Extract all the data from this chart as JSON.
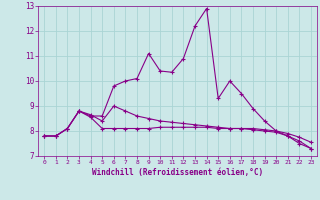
{
  "xlabel": "Windchill (Refroidissement éolien,°C)",
  "bg_color": "#cce8e8",
  "line_color": "#880088",
  "grid_color": "#aad4d4",
  "xlim": [
    -0.5,
    23.5
  ],
  "ylim": [
    7,
    13
  ],
  "xticks": [
    0,
    1,
    2,
    3,
    4,
    5,
    6,
    7,
    8,
    9,
    10,
    11,
    12,
    13,
    14,
    15,
    16,
    17,
    18,
    19,
    20,
    21,
    22,
    23
  ],
  "yticks": [
    7,
    8,
    9,
    10,
    11,
    12,
    13
  ],
  "line1_x": [
    0,
    1,
    2,
    3,
    4,
    5,
    6,
    7,
    8,
    9,
    10,
    11,
    12,
    13,
    14,
    15,
    16,
    17,
    18,
    19,
    20,
    21,
    22,
    23
  ],
  "line1_y": [
    7.8,
    7.8,
    8.1,
    8.8,
    8.6,
    8.6,
    9.8,
    10.0,
    10.1,
    11.1,
    10.4,
    10.35,
    10.9,
    12.2,
    12.9,
    9.3,
    10.0,
    9.5,
    8.9,
    8.4,
    8.0,
    7.8,
    7.5,
    7.3
  ],
  "line2_x": [
    0,
    1,
    2,
    3,
    4,
    5,
    6,
    7,
    8,
    9,
    10,
    11,
    12,
    13,
    14,
    15,
    16,
    17,
    18,
    19,
    20,
    21,
    22,
    23
  ],
  "line2_y": [
    7.8,
    7.8,
    8.1,
    8.8,
    8.55,
    8.1,
    8.1,
    8.1,
    8.1,
    8.1,
    8.15,
    8.15,
    8.15,
    8.15,
    8.15,
    8.1,
    8.1,
    8.1,
    8.1,
    8.05,
    8.0,
    7.9,
    7.75,
    7.55
  ],
  "line3_x": [
    0,
    1,
    2,
    3,
    4,
    5,
    6,
    7,
    8,
    9,
    10,
    11,
    12,
    13,
    14,
    15,
    16,
    17,
    18,
    19,
    20,
    21,
    22,
    23
  ],
  "line3_y": [
    7.8,
    7.8,
    8.1,
    8.8,
    8.65,
    8.4,
    9.0,
    8.8,
    8.6,
    8.5,
    8.4,
    8.35,
    8.3,
    8.25,
    8.2,
    8.15,
    8.1,
    8.1,
    8.05,
    8.0,
    7.95,
    7.8,
    7.6,
    7.3
  ]
}
